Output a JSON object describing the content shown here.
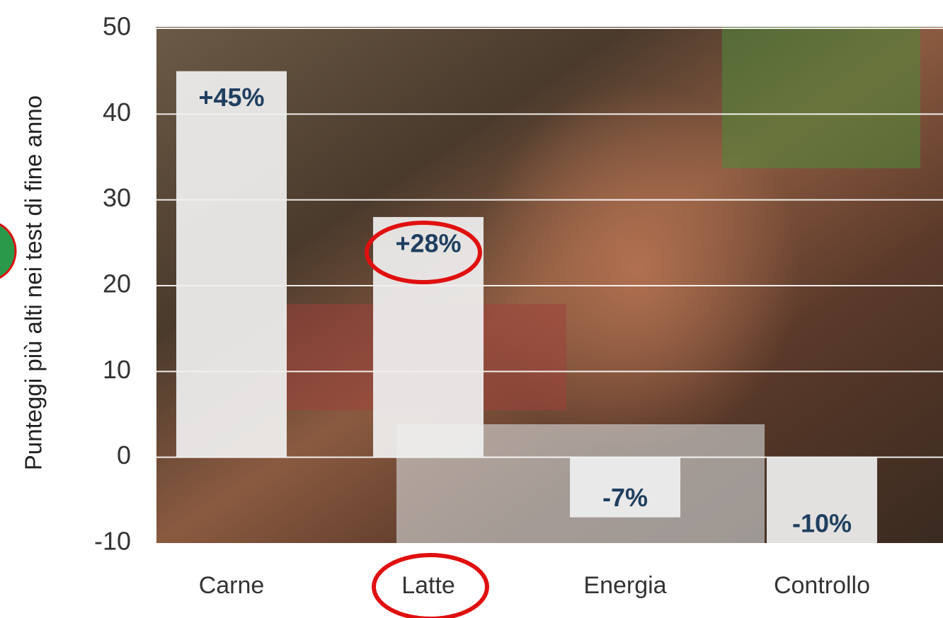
{
  "chart_data": {
    "type": "bar",
    "y_label": "Punteggi più alti nei test di fine anno",
    "categories": [
      "Carne",
      "Latte",
      "Energia",
      "Controllo"
    ],
    "values": [
      45,
      28,
      -7,
      -10
    ],
    "value_labels": [
      "+45%",
      "+28%",
      "-7%",
      "-10%"
    ],
    "color": "#efefef",
    "ylim": [
      -10,
      50
    ],
    "yticks": [
      -10,
      0,
      10,
      20,
      30,
      40,
      50
    ],
    "grid": true
  }
}
